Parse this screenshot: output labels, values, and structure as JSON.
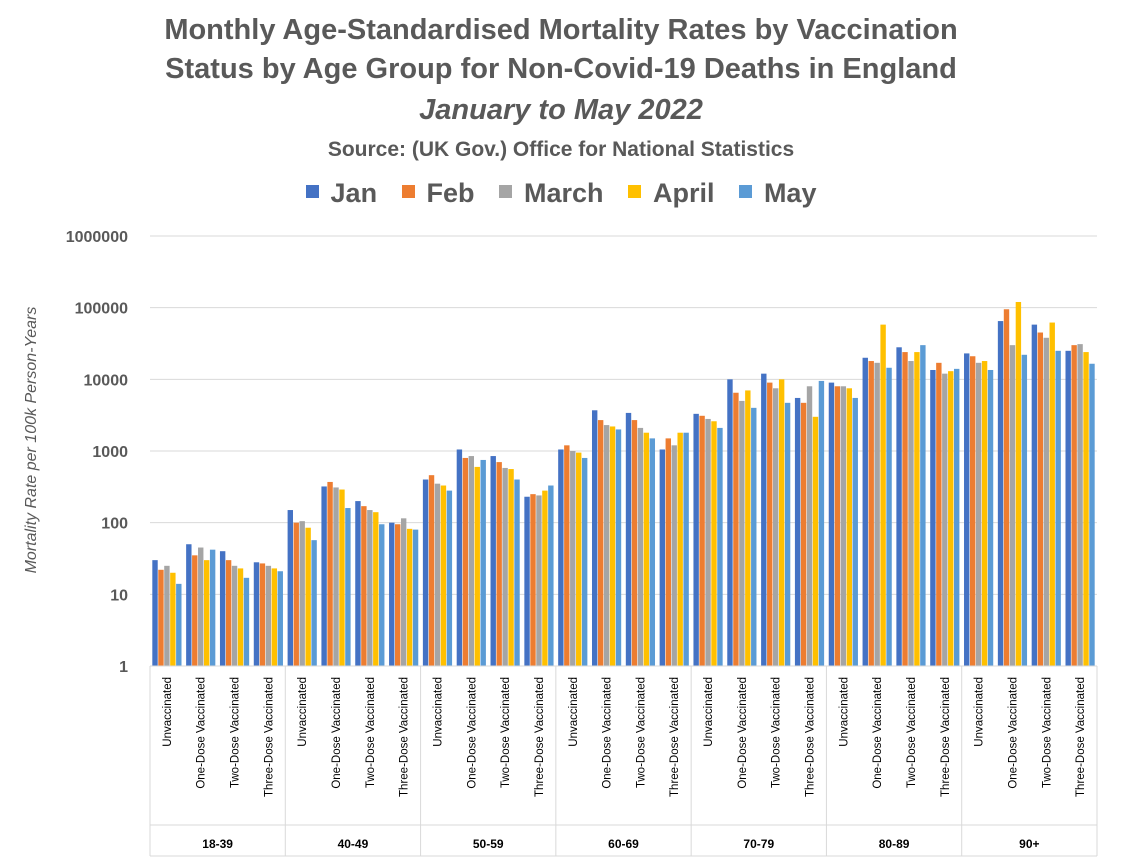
{
  "chart_data": {
    "type": "bar",
    "title": "Monthly Age-Standardised Mortality Rates by Vaccination",
    "title_line2": "Status by Age Group for Non-Covid-19 Deaths in England",
    "subtitle": "January to May 2022",
    "source": "Source: (UK Gov.) Office for National Statistics",
    "xlabel": "",
    "ylabel": "Mortality Rate per 100k Person-Years",
    "yscale": "log",
    "ylim": [
      1,
      1000000
    ],
    "yticks": [
      "1",
      "10",
      "100",
      "1000",
      "10000",
      "100000",
      "1000000"
    ],
    "gridlines": true,
    "legend_position": "top",
    "subcategories": [
      "Unvaccinated",
      "One-Dose Vaccinated",
      "Two-Dose Vaccinated",
      "Three-Dose Vaccinated"
    ],
    "groups": [
      "18-39",
      "40-49",
      "50-59",
      "60-69",
      "70-79",
      "80-89",
      "90+"
    ],
    "series": [
      {
        "name": "Jan",
        "color": "#4472C4",
        "values": [
          30,
          50,
          40,
          28,
          150,
          320,
          200,
          100,
          400,
          1050,
          850,
          230,
          1050,
          3700,
          3400,
          1050,
          3300,
          10000,
          12000,
          5500,
          9000,
          20000,
          28000,
          13500,
          23000,
          65000,
          58000,
          25000
        ]
      },
      {
        "name": "Feb",
        "color": "#ED7D31",
        "values": [
          22,
          35,
          30,
          27,
          100,
          370,
          170,
          95,
          460,
          800,
          700,
          250,
          1200,
          2700,
          2700,
          1500,
          3100,
          6500,
          9000,
          4700,
          8000,
          18000,
          24000,
          17000,
          21000,
          95000,
          45000,
          30000
        ]
      },
      {
        "name": "March",
        "color": "#A5A5A5",
        "values": [
          25,
          45,
          25,
          25,
          105,
          310,
          150,
          115,
          350,
          850,
          580,
          240,
          1000,
          2300,
          2100,
          1200,
          2800,
          5000,
          7500,
          8000,
          8000,
          17000,
          18000,
          12000,
          17000,
          30000,
          38000,
          31000
        ]
      },
      {
        "name": "April",
        "color": "#FFC000",
        "values": [
          20,
          30,
          23,
          23,
          85,
          290,
          140,
          82,
          330,
          600,
          560,
          280,
          950,
          2200,
          1800,
          1800,
          2600,
          7000,
          10000,
          3000,
          7500,
          58000,
          24000,
          13000,
          18000,
          120000,
          62000,
          24000
        ]
      },
      {
        "name": "May",
        "color": "#5B9BD5",
        "values": [
          14,
          42,
          17,
          21,
          57,
          160,
          95,
          80,
          280,
          750,
          400,
          330,
          800,
          2000,
          1500,
          1800,
          2100,
          4000,
          4700,
          9500,
          5500,
          14500,
          30000,
          14000,
          13500,
          22000,
          25000,
          16500
        ]
      }
    ]
  }
}
